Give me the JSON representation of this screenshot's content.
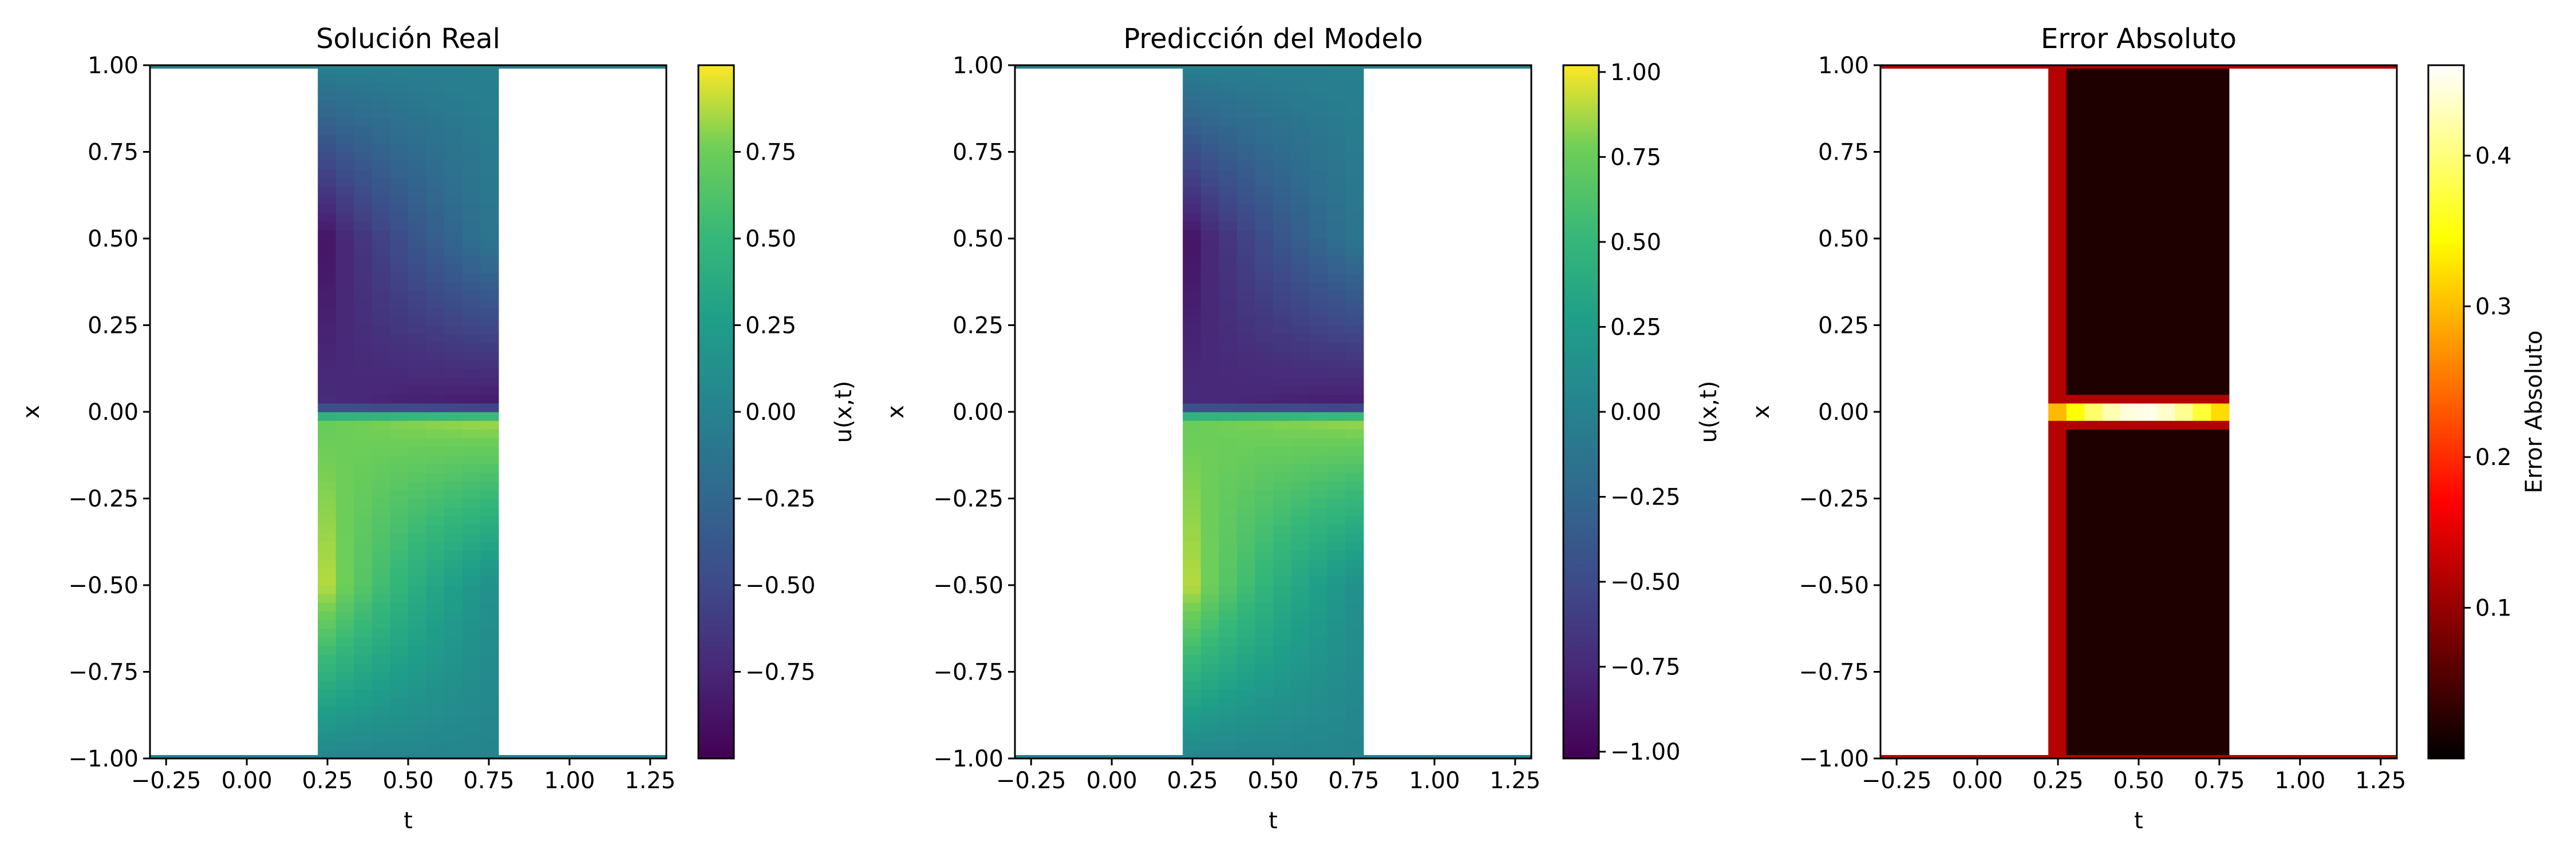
{
  "chart_data": [
    {
      "type": "heatmap",
      "title": "Solución Real",
      "xlabel": "t",
      "ylabel": "x",
      "xlim": [
        -0.3,
        1.3
      ],
      "ylim": [
        -1.0,
        1.0
      ],
      "xticks": [
        -0.25,
        0.0,
        0.25,
        0.5,
        0.75,
        1.0,
        1.25
      ],
      "xtick_labels": [
        "−0.25",
        "0.00",
        "0.25",
        "0.50",
        "0.75",
        "1.00",
        "1.25"
      ],
      "yticks": [
        -1.0,
        -0.75,
        -0.5,
        -0.25,
        0.0,
        0.25,
        0.5,
        0.75,
        1.0
      ],
      "ytick_labels": [
        "−1.00",
        "−0.75",
        "−0.50",
        "−0.25",
        "0.00",
        "0.25",
        "0.50",
        "0.75",
        "1.00"
      ],
      "data_region_t": [
        0.22,
        0.78
      ],
      "value_profile": {
        "x": [
          -1.0,
          -0.99,
          -0.5,
          -0.02,
          0.02,
          0.5,
          0.99,
          1.0
        ],
        "u_early": [
          0.0,
          0.05,
          0.98,
          0.7,
          -0.7,
          -0.98,
          -0.05,
          0.0
        ],
        "u_late": [
          0.0,
          0.02,
          0.1,
          0.85,
          -0.85,
          -0.1,
          -0.02,
          0.0
        ]
      },
      "colormap": "viridis",
      "colorbar": {
        "label": "u(x,t)",
        "range": [
          -1.0,
          1.0
        ],
        "ticks": [
          -0.75,
          -0.5,
          -0.25,
          0.0,
          0.25,
          0.5,
          0.75
        ],
        "tick_labels": [
          "−0.75",
          "−0.50",
          "−0.25",
          "0.00",
          "0.25",
          "0.50",
          "0.75"
        ]
      }
    },
    {
      "type": "heatmap",
      "title": "Predicción del Modelo",
      "xlabel": "t",
      "ylabel": "x",
      "xlim": [
        -0.3,
        1.3
      ],
      "ylim": [
        -1.0,
        1.0
      ],
      "xticks": [
        -0.25,
        0.0,
        0.25,
        0.5,
        0.75,
        1.0,
        1.25
      ],
      "xtick_labels": [
        "−0.25",
        "0.00",
        "0.25",
        "0.50",
        "0.75",
        "1.00",
        "1.25"
      ],
      "yticks": [
        -1.0,
        -0.75,
        -0.5,
        -0.25,
        0.0,
        0.25,
        0.5,
        0.75,
        1.0
      ],
      "ytick_labels": [
        "−1.00",
        "−0.75",
        "−0.50",
        "−0.25",
        "0.00",
        "0.25",
        "0.50",
        "0.75",
        "1.00"
      ],
      "data_region_t": [
        0.22,
        0.78
      ],
      "value_profile": {
        "x": [
          -1.0,
          -0.99,
          -0.5,
          -0.02,
          0.02,
          0.5,
          0.99,
          1.0
        ],
        "u_early": [
          0.0,
          0.05,
          1.0,
          0.72,
          -0.72,
          -1.0,
          -0.05,
          0.0
        ],
        "u_late": [
          0.0,
          0.02,
          0.1,
          0.85,
          -0.85,
          -0.1,
          -0.02,
          0.0
        ]
      },
      "colormap": "viridis",
      "colorbar": {
        "label": "u(x,t)",
        "range": [
          -1.02,
          1.02
        ],
        "ticks": [
          -1.0,
          -0.75,
          -0.5,
          -0.25,
          0.0,
          0.25,
          0.5,
          0.75,
          1.0
        ],
        "tick_labels": [
          "−1.00",
          "−0.75",
          "−0.50",
          "−0.25",
          "0.00",
          "0.25",
          "0.50",
          "0.75",
          "1.00"
        ]
      }
    },
    {
      "type": "heatmap",
      "title": "Error Absoluto",
      "xlabel": "t",
      "ylabel": "x",
      "xlim": [
        -0.3,
        1.3
      ],
      "ylim": [
        -1.0,
        1.0
      ],
      "xticks": [
        -0.25,
        0.0,
        0.25,
        0.5,
        0.75,
        1.0,
        1.25
      ],
      "xtick_labels": [
        "−0.25",
        "0.00",
        "0.25",
        "0.50",
        "0.75",
        "1.00",
        "1.25"
      ],
      "yticks": [
        -1.0,
        -0.75,
        -0.5,
        -0.25,
        0.0,
        0.25,
        0.5,
        0.75,
        1.0
      ],
      "ytick_labels": [
        "−1.00",
        "−0.75",
        "−0.50",
        "−0.25",
        "0.00",
        "0.25",
        "0.50",
        "0.75",
        "1.00"
      ],
      "data_region_t": [
        0.22,
        0.78
      ],
      "error_profile": {
        "background": 0.02,
        "spike_at_x": 0.0,
        "spike_max": 0.45,
        "edge_band_value": 0.12
      },
      "colormap": "hot",
      "colorbar": {
        "label": "Error Absoluto",
        "range": [
          0.0,
          0.46
        ],
        "ticks": [
          0.1,
          0.2,
          0.3,
          0.4
        ],
        "tick_labels": [
          "0.1",
          "0.2",
          "0.3",
          "0.4"
        ]
      }
    }
  ]
}
